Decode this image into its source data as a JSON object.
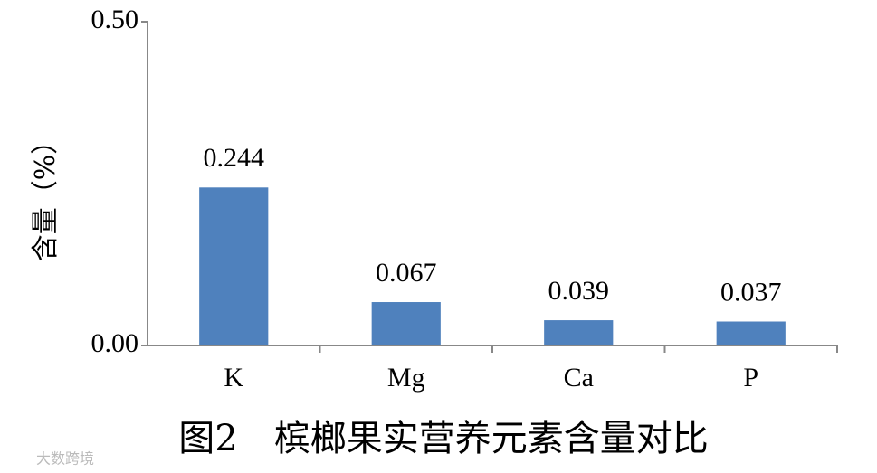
{
  "chart_data": {
    "type": "bar",
    "title": "图2　槟榔果实营养元素含量对比",
    "y_label": "含量（%）",
    "categories": [
      "K",
      "Mg",
      "Ca",
      "P"
    ],
    "values": [
      0.244,
      0.067,
      0.039,
      0.037
    ],
    "color": "#4f81bd",
    "ylim": [
      0,
      0.5
    ],
    "yticks": [
      {
        "value": 0,
        "label": "0.00"
      },
      {
        "value": 0.5,
        "label": "0.50"
      }
    ],
    "grid": false,
    "watermark": "大数跨境"
  }
}
